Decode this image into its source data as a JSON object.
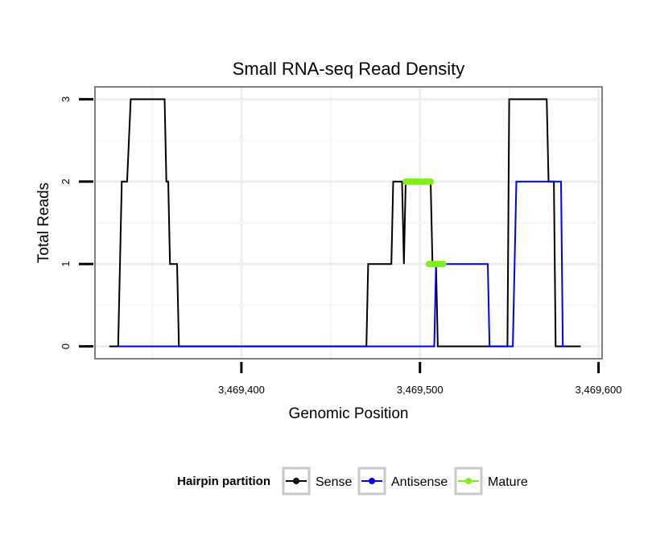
{
  "chart_data": {
    "type": "line",
    "title": "Small RNA-seq Read Density",
    "xlabel": "Genomic Position",
    "ylabel": "Total Reads",
    "xlim": [
      3469318,
      3469602
    ],
    "ylim": [
      -0.15,
      3.15
    ],
    "x_ticks": [
      3469400,
      3469500,
      3469600
    ],
    "x_tick_labels": [
      "3,469,400",
      "3,469,500",
      "3,469,600"
    ],
    "y_ticks": [
      0,
      1,
      2,
      3
    ],
    "y_tick_labels": [
      "0",
      "1",
      "2",
      "3"
    ],
    "grid": true,
    "legend": {
      "title": "Hairpin partition",
      "position": "bottom",
      "entries": [
        "Sense",
        "Antisense",
        "Mature"
      ]
    },
    "series": [
      {
        "name": "Sense",
        "color": "#000000",
        "points": [
          [
            3469326,
            0
          ],
          [
            3469331,
            0
          ],
          [
            3469333,
            2
          ],
          [
            3469336,
            2
          ],
          [
            3469338,
            3
          ],
          [
            3469357,
            3
          ],
          [
            3469358,
            2
          ],
          [
            3469359,
            2
          ],
          [
            3469360,
            1
          ],
          [
            3469364,
            1
          ],
          [
            3469365,
            0
          ],
          [
            3469470,
            0
          ],
          [
            3469471,
            1
          ],
          [
            3469484,
            1
          ],
          [
            3469485,
            2
          ],
          [
            3469490,
            2
          ],
          [
            3469491,
            1
          ],
          [
            3469492,
            2
          ],
          [
            3469506,
            2
          ],
          [
            3469507,
            1
          ],
          [
            3469509,
            1
          ],
          [
            3469510,
            0
          ],
          [
            3469549,
            0
          ],
          [
            3469550,
            3
          ],
          [
            3469571,
            3
          ],
          [
            3469572,
            2
          ],
          [
            3469575,
            2
          ],
          [
            3469576,
            0
          ],
          [
            3469590,
            0
          ]
        ]
      },
      {
        "name": "Antisense",
        "color": "#0000ee",
        "points": [
          [
            3469331,
            0
          ],
          [
            3469508,
            0
          ],
          [
            3469509,
            1
          ],
          [
            3469538,
            1
          ],
          [
            3469539,
            0
          ],
          [
            3469552,
            0
          ],
          [
            3469554,
            2
          ],
          [
            3469579,
            2
          ],
          [
            3469580,
            0
          ],
          [
            3469582,
            0
          ]
        ]
      },
      {
        "name": "Mature",
        "color": "#7fee1c",
        "segments": [
          [
            [
              3469492,
              2
            ],
            [
              3469506,
              2
            ]
          ],
          [
            [
              3469505,
              1
            ],
            [
              3469513,
              1
            ]
          ]
        ]
      }
    ]
  }
}
